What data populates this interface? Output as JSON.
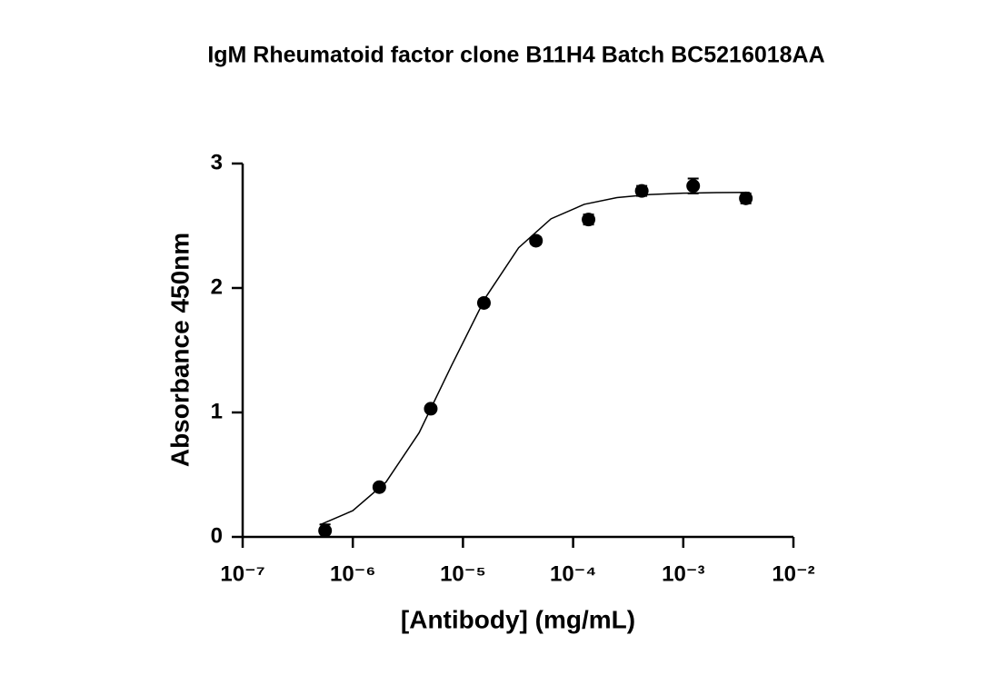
{
  "chart_data": {
    "type": "scatter",
    "title": "IgM Rheumatoid factor clone B11H4 Batch BC5216018AA",
    "x_label": "[Antibody] (mg/mL)",
    "y_label": "Absorbance 450nm",
    "xscale": "log",
    "xlim": [
      1e-07,
      0.01
    ],
    "ylim": [
      0,
      3
    ],
    "xticks": [
      {
        "value": 1e-07,
        "label": "10⁻⁷"
      },
      {
        "value": 1e-06,
        "label": "10⁻⁶"
      },
      {
        "value": 1e-05,
        "label": "10⁻⁵"
      },
      {
        "value": 0.0001,
        "label": "10⁻⁴"
      },
      {
        "value": 0.001,
        "label": "10⁻³"
      },
      {
        "value": 0.01,
        "label": "10⁻²"
      }
    ],
    "yticks": [
      0,
      1,
      2,
      3
    ],
    "color": "#000000",
    "x": [
      5.6e-07,
      1.74e-06,
      5.1e-06,
      1.55e-05,
      4.6e-05,
      0.000138,
      0.00042,
      0.00123,
      0.0037
    ],
    "values": [
      0.05,
      0.4,
      1.03,
      1.88,
      2.38,
      2.55,
      2.78,
      2.82,
      2.72
    ],
    "errors": [
      0.05,
      0.02,
      0.02,
      0.03,
      0.03,
      0.04,
      0.04,
      0.06,
      0.04
    ],
    "curve": {
      "x": [
        5e-07,
        1e-06,
        2e-06,
        4e-06,
        7.9e-06,
        1.6e-05,
        3.2e-05,
        6.3e-05,
        0.000126,
        0.00025,
        0.0005,
        0.001,
        0.002,
        0.004
      ],
      "values": [
        0.096,
        0.211,
        0.44,
        0.837,
        1.379,
        1.922,
        2.323,
        2.556,
        2.672,
        2.726,
        2.751,
        2.762,
        2.766,
        2.768
      ]
    }
  }
}
